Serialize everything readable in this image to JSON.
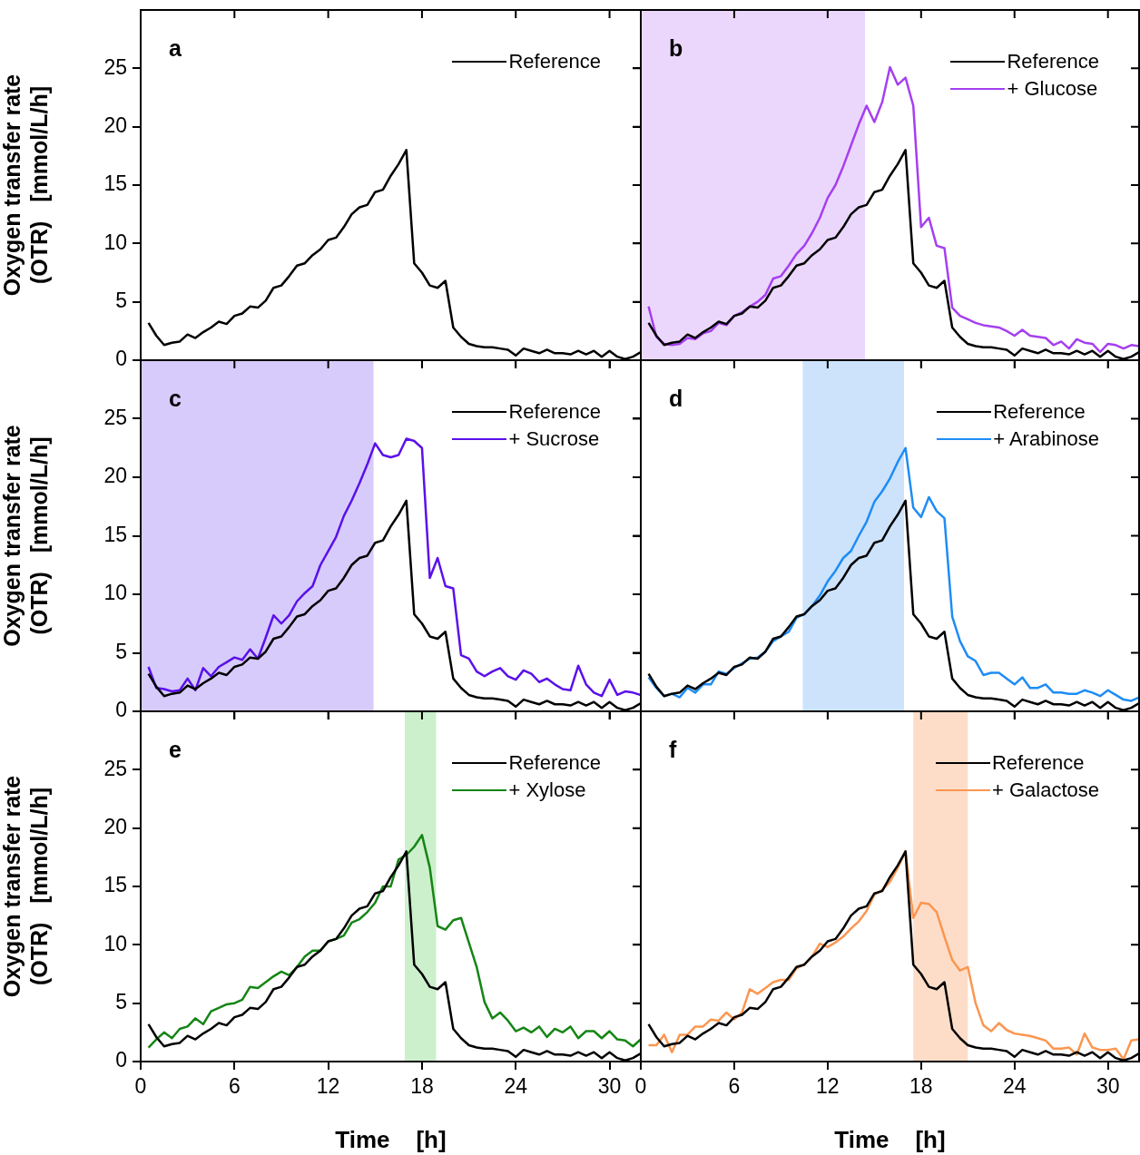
{
  "chart_data": [
    {
      "type": "line",
      "title": "a",
      "ylabel": "Oxygen transfer rate\n(OTR)   [mmol/L/h]",
      "x": [
        0.5,
        1,
        1.5,
        2,
        2.5,
        3,
        3.5,
        4,
        4.5,
        5,
        5.5,
        6,
        6.5,
        7,
        7.5,
        8,
        8.5,
        9,
        9.5,
        10,
        10.5,
        11,
        11.5,
        12,
        12.5,
        13,
        13.5,
        14,
        14.5,
        15,
        15.5,
        16,
        16.5,
        17,
        17.5,
        18,
        18.5,
        19,
        19.5,
        20,
        20.5,
        21,
        21.5,
        22,
        22.5,
        23,
        23.5,
        24,
        24.5,
        25,
        25.5,
        26,
        26.5,
        27,
        27.5,
        28,
        28.5,
        29,
        29.5,
        30,
        30.5,
        31,
        31.5,
        32
      ],
      "xlim": [
        0,
        32
      ],
      "xticks": [
        0,
        6,
        12,
        18,
        24,
        30
      ],
      "ylim": [
        0,
        30
      ],
      "yticks": [
        0,
        5,
        10,
        15,
        20,
        25
      ],
      "tick_labels": "y",
      "legend": "top right",
      "series": [
        {
          "name": "Reference",
          "color": "#000000",
          "values": [
            3.2,
            2.1,
            1.3,
            1.5,
            1.6,
            2.2,
            1.9,
            2.4,
            2.8,
            3.3,
            3.1,
            3.8,
            4.0,
            4.6,
            4.5,
            5.1,
            6.2,
            6.4,
            7.2,
            8.1,
            8.3,
            9.0,
            9.5,
            10.3,
            10.5,
            11.4,
            12.5,
            13.1,
            13.3,
            14.4,
            14.6,
            15.8,
            16.8,
            18.0,
            8.3,
            7.5,
            6.4,
            6.2,
            6.8,
            2.8,
            2.0,
            1.4,
            1.2,
            1.1,
            1.1,
            1.0,
            0.9,
            0.4,
            1.0,
            0.8,
            0.6,
            0.9,
            0.6,
            0.6,
            0.5,
            0.8,
            0.5,
            0.8,
            0.3,
            0.8,
            0.3,
            0.1,
            0.3,
            0.7
          ]
        }
      ]
    },
    {
      "type": "line",
      "title": "b",
      "x": [
        0.5,
        1,
        1.5,
        2,
        2.5,
        3,
        3.5,
        4,
        4.5,
        5,
        5.5,
        6,
        6.5,
        7,
        7.5,
        8,
        8.5,
        9,
        9.5,
        10,
        10.5,
        11,
        11.5,
        12,
        12.5,
        13,
        13.5,
        14,
        14.5,
        15,
        15.5,
        16,
        16.5,
        17,
        17.5,
        18,
        18.5,
        19,
        19.5,
        20,
        20.5,
        21,
        21.5,
        22,
        22.5,
        23,
        23.5,
        24,
        24.5,
        25,
        25.5,
        26,
        26.5,
        27,
        27.5,
        28,
        28.5,
        29,
        29.5,
        30,
        30.5,
        31,
        31.5,
        32
      ],
      "xlim": [
        0,
        32
      ],
      "xticks": [
        0,
        6,
        12,
        18,
        24,
        30
      ],
      "ylim": [
        0,
        30
      ],
      "yticks": [
        0,
        5,
        10,
        15,
        20,
        25
      ],
      "tick_labels": false,
      "legend": "top right",
      "bands": [
        {
          "axis": "x",
          "from": 0,
          "to": 14.4,
          "color": "#ebd7fc"
        }
      ],
      "series": [
        {
          "name": "Reference",
          "color": "#000000",
          "values": [
            3.2,
            2.1,
            1.3,
            1.5,
            1.6,
            2.2,
            1.9,
            2.4,
            2.8,
            3.3,
            3.1,
            3.8,
            4.0,
            4.6,
            4.5,
            5.1,
            6.2,
            6.4,
            7.2,
            8.1,
            8.3,
            9.0,
            9.5,
            10.3,
            10.5,
            11.4,
            12.5,
            13.1,
            13.3,
            14.4,
            14.6,
            15.8,
            16.8,
            18.0,
            8.3,
            7.5,
            6.4,
            6.2,
            6.8,
            2.8,
            2.0,
            1.4,
            1.2,
            1.1,
            1.1,
            1.0,
            0.9,
            0.4,
            1.0,
            0.8,
            0.6,
            0.9,
            0.6,
            0.6,
            0.5,
            0.8,
            0.5,
            0.8,
            0.3,
            0.8,
            0.3,
            0.1,
            0.3,
            0.7
          ]
        },
        {
          "name": "+ Glucose",
          "color": "#a53ff0",
          "values": [
            4.6,
            2.0,
            1.4,
            1.3,
            1.4,
            1.9,
            1.8,
            2.3,
            2.5,
            3.2,
            3.0,
            3.8,
            4.1,
            4.6,
            5.0,
            5.6,
            7.0,
            7.2,
            8.1,
            9.1,
            9.8,
            10.9,
            12.2,
            13.9,
            15.0,
            16.6,
            18.4,
            20.2,
            21.8,
            20.4,
            22.1,
            25.1,
            23.6,
            24.2,
            21.8,
            11.4,
            12.2,
            9.8,
            9.6,
            4.5,
            3.8,
            3.5,
            3.2,
            3.0,
            2.9,
            2.8,
            2.5,
            2.1,
            2.6,
            2.1,
            2.0,
            1.9,
            1.3,
            1.6,
            1.0,
            1.8,
            1.5,
            1.4,
            0.7,
            1.4,
            1.3,
            1.0,
            1.3,
            1.2
          ]
        }
      ]
    },
    {
      "type": "line",
      "title": "c",
      "ylabel": "Oxygen transfer rate\n(OTR)   [mmol/L/h]",
      "x": [
        0.5,
        1,
        1.5,
        2,
        2.5,
        3,
        3.5,
        4,
        4.5,
        5,
        5.5,
        6,
        6.5,
        7,
        7.5,
        8,
        8.5,
        9,
        9.5,
        10,
        10.5,
        11,
        11.5,
        12,
        12.5,
        13,
        13.5,
        14,
        14.5,
        15,
        15.5,
        16,
        16.5,
        17,
        17.5,
        18,
        18.5,
        19,
        19.5,
        20,
        20.5,
        21,
        21.5,
        22,
        22.5,
        23,
        23.5,
        24,
        24.5,
        25,
        25.5,
        26,
        26.5,
        27,
        27.5,
        28,
        28.5,
        29,
        29.5,
        30,
        30.5,
        31,
        31.5,
        32
      ],
      "xlim": [
        0,
        32
      ],
      "xticks": [
        0,
        6,
        12,
        18,
        24,
        30
      ],
      "ylim": [
        0,
        30
      ],
      "yticks": [
        0,
        5,
        10,
        15,
        20,
        25
      ],
      "tick_labels": "y",
      "legend": "top right",
      "bands": [
        {
          "axis": "x",
          "from": 0,
          "to": 14.9,
          "color": "#d7cbfb"
        }
      ],
      "series": [
        {
          "name": "Reference",
          "color": "#000000",
          "values": [
            3.2,
            2.1,
            1.3,
            1.5,
            1.6,
            2.2,
            1.9,
            2.4,
            2.8,
            3.3,
            3.1,
            3.8,
            4.0,
            4.6,
            4.5,
            5.1,
            6.2,
            6.4,
            7.2,
            8.1,
            8.3,
            9.0,
            9.5,
            10.3,
            10.5,
            11.4,
            12.5,
            13.1,
            13.3,
            14.4,
            14.6,
            15.8,
            16.8,
            18.0,
            8.3,
            7.5,
            6.4,
            6.2,
            6.8,
            2.8,
            2.0,
            1.4,
            1.2,
            1.1,
            1.1,
            1.0,
            0.9,
            0.4,
            1.0,
            0.8,
            0.6,
            0.9,
            0.6,
            0.6,
            0.5,
            0.8,
            0.5,
            0.8,
            0.3,
            0.8,
            0.3,
            0.1,
            0.3,
            0.7
          ]
        },
        {
          "name": "+ Sucrose",
          "color": "#5a10ea",
          "values": [
            3.8,
            2.0,
            1.9,
            1.7,
            1.8,
            2.8,
            1.8,
            3.7,
            3.0,
            3.8,
            4.2,
            4.6,
            4.4,
            5.3,
            4.5,
            6.3,
            8.2,
            7.5,
            8.2,
            9.4,
            10.1,
            10.7,
            12.5,
            13.7,
            14.9,
            16.7,
            18.0,
            19.5,
            21.1,
            22.9,
            21.9,
            21.7,
            21.9,
            23.3,
            23.1,
            22.5,
            11.4,
            13.1,
            10.7,
            10.5,
            4.8,
            4.5,
            3.4,
            3.0,
            3.4,
            3.7,
            3.0,
            2.7,
            3.5,
            3.2,
            2.5,
            2.8,
            2.3,
            1.9,
            1.8,
            3.9,
            2.3,
            1.6,
            1.3,
            2.7,
            1.4,
            1.7,
            1.6,
            1.4
          ]
        }
      ]
    },
    {
      "type": "line",
      "title": "d",
      "x": [
        0.5,
        1,
        1.5,
        2,
        2.5,
        3,
        3.5,
        4,
        4.5,
        5,
        5.5,
        6,
        6.5,
        7,
        7.5,
        8,
        8.5,
        9,
        9.5,
        10,
        10.5,
        11,
        11.5,
        12,
        12.5,
        13,
        13.5,
        14,
        14.5,
        15,
        15.5,
        16,
        16.5,
        17,
        17.5,
        18,
        18.5,
        19,
        19.5,
        20,
        20.5,
        21,
        21.5,
        22,
        22.5,
        23,
        23.5,
        24,
        24.5,
        25,
        25.5,
        26,
        26.5,
        27,
        27.5,
        28,
        28.5,
        29,
        29.5,
        30,
        30.5,
        31,
        31.5,
        32
      ],
      "xlim": [
        0,
        32
      ],
      "xticks": [
        0,
        6,
        12,
        18,
        24,
        30
      ],
      "ylim": [
        0,
        30
      ],
      "yticks": [
        0,
        5,
        10,
        15,
        20,
        25
      ],
      "tick_labels": false,
      "legend": "top right",
      "bands": [
        {
          "axis": "x",
          "from": 10.4,
          "to": 16.9,
          "color": "#cce3fb"
        }
      ],
      "series": [
        {
          "name": "Reference",
          "color": "#000000",
          "values": [
            3.2,
            2.1,
            1.3,
            1.5,
            1.6,
            2.2,
            1.9,
            2.4,
            2.8,
            3.3,
            3.1,
            3.8,
            4.0,
            4.6,
            4.5,
            5.1,
            6.2,
            6.4,
            7.2,
            8.1,
            8.3,
            9.0,
            9.5,
            10.3,
            10.5,
            11.4,
            12.5,
            13.1,
            13.3,
            14.4,
            14.6,
            15.8,
            16.8,
            18.0,
            8.3,
            7.5,
            6.4,
            6.2,
            6.8,
            2.8,
            2.0,
            1.4,
            1.2,
            1.1,
            1.1,
            1.0,
            0.9,
            0.4,
            1.0,
            0.8,
            0.6,
            0.9,
            0.6,
            0.6,
            0.5,
            0.8,
            0.5,
            0.8,
            0.3,
            0.8,
            0.3,
            0.1,
            0.3,
            0.7
          ]
        },
        {
          "name": "+ Arabinose",
          "color": "#1e8cf5",
          "values": [
            2.9,
            2.0,
            1.3,
            1.5,
            1.2,
            2.0,
            1.6,
            2.3,
            2.3,
            3.4,
            3.2,
            3.7,
            4.1,
            4.5,
            4.6,
            5.1,
            6.0,
            6.4,
            6.8,
            8.0,
            8.3,
            9.0,
            9.9,
            11.1,
            12.0,
            13.1,
            13.7,
            15.0,
            16.2,
            17.9,
            18.8,
            19.9,
            21.3,
            22.5,
            17.4,
            16.6,
            18.3,
            17.1,
            16.5,
            8.1,
            6.0,
            4.7,
            4.3,
            3.1,
            3.3,
            3.3,
            2.8,
            2.3,
            2.9,
            2.0,
            2.0,
            2.3,
            1.6,
            1.6,
            1.5,
            1.5,
            1.8,
            1.6,
            1.3,
            1.8,
            1.4,
            1.0,
            0.9,
            1.2
          ]
        }
      ]
    },
    {
      "type": "line",
      "title": "e",
      "xlabel": "Time    [h]",
      "ylabel": "Oxygen transfer rate\n(OTR)   [mmol/L/h]",
      "x": [
        0.5,
        1,
        1.5,
        2,
        2.5,
        3,
        3.5,
        4,
        4.5,
        5,
        5.5,
        6,
        6.5,
        7,
        7.5,
        8,
        8.5,
        9,
        9.5,
        10,
        10.5,
        11,
        11.5,
        12,
        12.5,
        13,
        13.5,
        14,
        14.5,
        15,
        15.5,
        16,
        16.5,
        17,
        17.5,
        18,
        18.5,
        19,
        19.5,
        20,
        20.5,
        21,
        21.5,
        22,
        22.5,
        23,
        23.5,
        24,
        24.5,
        25,
        25.5,
        26,
        26.5,
        27,
        27.5,
        28,
        28.5,
        29,
        29.5,
        30,
        30.5,
        31,
        31.5,
        32
      ],
      "xlim": [
        0,
        32
      ],
      "xticks": [
        0,
        6,
        12,
        18,
        24,
        30
      ],
      "ylim": [
        0,
        30
      ],
      "yticks": [
        0,
        5,
        10,
        15,
        20,
        25
      ],
      "legend": "top right",
      "bands": [
        {
          "axis": "x",
          "from": 16.9,
          "to": 18.9,
          "color": "#ccefcc"
        }
      ],
      "series": [
        {
          "name": "Reference",
          "color": "#000000",
          "values": [
            3.2,
            2.1,
            1.3,
            1.5,
            1.6,
            2.2,
            1.9,
            2.4,
            2.8,
            3.3,
            3.1,
            3.8,
            4.0,
            4.6,
            4.5,
            5.1,
            6.2,
            6.4,
            7.2,
            8.1,
            8.3,
            9.0,
            9.5,
            10.3,
            10.5,
            11.4,
            12.5,
            13.1,
            13.3,
            14.4,
            14.6,
            15.8,
            16.8,
            18.0,
            8.3,
            7.5,
            6.4,
            6.2,
            6.8,
            2.8,
            2.0,
            1.4,
            1.2,
            1.1,
            1.1,
            1.0,
            0.9,
            0.4,
            1.0,
            0.8,
            0.6,
            0.9,
            0.6,
            0.6,
            0.5,
            0.8,
            0.5,
            0.8,
            0.3,
            0.8,
            0.3,
            0.1,
            0.3,
            0.7
          ]
        },
        {
          "name": "+ Xylose",
          "color": "#158515",
          "values": [
            1.2,
            1.9,
            2.5,
            2.0,
            2.8,
            3.0,
            3.7,
            3.2,
            4.3,
            4.6,
            4.9,
            5.0,
            5.3,
            6.4,
            6.3,
            6.8,
            7.3,
            7.7,
            7.4,
            8.1,
            9.0,
            9.5,
            9.5,
            10.3,
            10.5,
            10.8,
            11.9,
            12.2,
            12.8,
            13.6,
            15.0,
            15.0,
            17.3,
            17.7,
            18.4,
            19.4,
            16.6,
            11.6,
            11.3,
            12.1,
            12.3,
            10.2,
            8.1,
            5.1,
            3.7,
            4.2,
            3.5,
            2.6,
            2.9,
            2.5,
            3.0,
            2.1,
            2.8,
            2.5,
            3.0,
            2.0,
            2.6,
            2.6,
            2.0,
            2.6,
            1.9,
            1.8,
            1.3,
            1.9
          ]
        }
      ]
    },
    {
      "type": "line",
      "title": "f",
      "xlabel": "Time    [h]",
      "x": [
        0.5,
        1,
        1.5,
        2,
        2.5,
        3,
        3.5,
        4,
        4.5,
        5,
        5.5,
        6,
        6.5,
        7,
        7.5,
        8,
        8.5,
        9,
        9.5,
        10,
        10.5,
        11,
        11.5,
        12,
        12.5,
        13,
        13.5,
        14,
        14.5,
        15,
        15.5,
        16,
        16.5,
        17,
        17.5,
        18,
        18.5,
        19,
        19.5,
        20,
        20.5,
        21,
        21.5,
        22,
        22.5,
        23,
        23.5,
        24,
        24.5,
        25,
        25.5,
        26,
        26.5,
        27,
        27.5,
        28,
        28.5,
        29,
        29.5,
        30,
        30.5,
        31,
        31.5,
        32
      ],
      "xlim": [
        0,
        32
      ],
      "xticks": [
        0,
        6,
        12,
        18,
        24,
        30
      ],
      "ylim": [
        0,
        30
      ],
      "yticks": [
        0,
        5,
        10,
        15,
        20,
        25
      ],
      "tick_labels": "x",
      "legend": "top right",
      "bands": [
        {
          "axis": "x",
          "from": 17.5,
          "to": 21.0,
          "color": "#fdddc8"
        }
      ],
      "series": [
        {
          "name": "Reference",
          "color": "#000000",
          "values": [
            3.2,
            2.1,
            1.3,
            1.5,
            1.6,
            2.2,
            1.9,
            2.4,
            2.8,
            3.3,
            3.1,
            3.8,
            4.0,
            4.6,
            4.5,
            5.1,
            6.2,
            6.4,
            7.2,
            8.1,
            8.3,
            9.0,
            9.5,
            10.3,
            10.5,
            11.4,
            12.5,
            13.1,
            13.3,
            14.4,
            14.6,
            15.8,
            16.8,
            18.0,
            8.3,
            7.5,
            6.4,
            6.2,
            6.8,
            2.8,
            2.0,
            1.4,
            1.2,
            1.1,
            1.1,
            1.0,
            0.9,
            0.4,
            1.0,
            0.8,
            0.6,
            0.9,
            0.6,
            0.6,
            0.5,
            0.8,
            0.5,
            0.8,
            0.3,
            0.8,
            0.3,
            0.1,
            0.3,
            0.7
          ]
        },
        {
          "name": "+ Galactose",
          "color": "#fb9650",
          "values": [
            1.4,
            1.4,
            2.3,
            0.8,
            2.3,
            2.3,
            3.0,
            3.0,
            3.6,
            3.5,
            4.2,
            3.6,
            4.2,
            6.2,
            5.8,
            6.3,
            6.8,
            7.0,
            7.0,
            8.0,
            8.3,
            9.0,
            10.1,
            9.8,
            10.2,
            10.7,
            11.4,
            12.0,
            12.9,
            14.3,
            14.7,
            15.4,
            16.6,
            18.0,
            12.3,
            13.6,
            13.5,
            12.8,
            10.7,
            8.7,
            7.8,
            8.1,
            5.0,
            3.1,
            2.6,
            3.3,
            2.7,
            2.4,
            2.3,
            2.2,
            2.0,
            1.8,
            1.1,
            1.1,
            1.2,
            0.6,
            2.4,
            1.2,
            1.0,
            1.0,
            1.1,
            0.2,
            1.8,
            1.9
          ]
        }
      ]
    }
  ]
}
